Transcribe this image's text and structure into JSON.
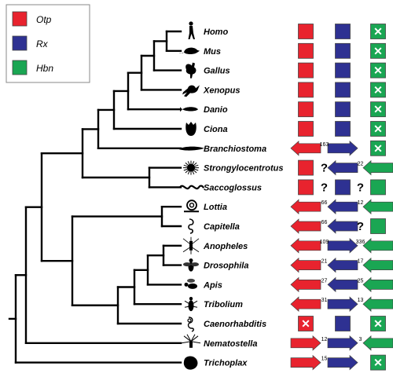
{
  "legend": [
    {
      "label": "Otp",
      "color": "#e8232e"
    },
    {
      "label": "Rx",
      "color": "#2e3192"
    },
    {
      "label": "Hbn",
      "color": "#1aa653"
    }
  ],
  "colors": {
    "otp": "#e8232e",
    "rx": "#2e3192",
    "hbn": "#1aa653"
  },
  "taxa": [
    {
      "name": "Homo",
      "silhouette": "human-icon",
      "otp": {
        "kind": "box"
      },
      "rx": {
        "kind": "box"
      },
      "hbn": {
        "kind": "absent"
      }
    },
    {
      "name": "Mus",
      "silhouette": "mouse-icon",
      "otp": {
        "kind": "box"
      },
      "rx": {
        "kind": "box"
      },
      "hbn": {
        "kind": "absent"
      }
    },
    {
      "name": "Gallus",
      "silhouette": "chicken-icon",
      "otp": {
        "kind": "box"
      },
      "rx": {
        "kind": "box"
      },
      "hbn": {
        "kind": "absent"
      }
    },
    {
      "name": "Xenopus",
      "silhouette": "frog-icon",
      "otp": {
        "kind": "box"
      },
      "rx": {
        "kind": "box"
      },
      "hbn": {
        "kind": "absent"
      }
    },
    {
      "name": "Danio",
      "silhouette": "fish-icon",
      "otp": {
        "kind": "box"
      },
      "rx": {
        "kind": "box"
      },
      "hbn": {
        "kind": "absent"
      }
    },
    {
      "name": "Ciona",
      "silhouette": "sea-squirt-icon",
      "otp": {
        "kind": "box"
      },
      "rx": {
        "kind": "box"
      },
      "hbn": {
        "kind": "absent"
      }
    },
    {
      "name": "Branchiostoma",
      "silhouette": "lancelet-icon",
      "otp": {
        "kind": "arrow",
        "dir": "left"
      },
      "gap1": "163",
      "rx": {
        "kind": "arrow",
        "dir": "right"
      },
      "hbn": {
        "kind": "absent"
      }
    },
    {
      "name": "Strongylocentrotus",
      "silhouette": "sea-urchin-icon",
      "otp": {
        "kind": "box"
      },
      "gap1": "?",
      "rx": {
        "kind": "arrow",
        "dir": "left"
      },
      "gap2": "22",
      "hbn": {
        "kind": "arrow",
        "dir": "left"
      }
    },
    {
      "name": "Saccoglossus",
      "silhouette": "acorn-worm-icon",
      "otp": {
        "kind": "box"
      },
      "gap1": "?",
      "rx": {
        "kind": "box"
      },
      "gap2": "?",
      "hbn": {
        "kind": "box"
      }
    },
    {
      "name": "Lottia",
      "silhouette": "snail-icon",
      "otp": {
        "kind": "arrow",
        "dir": "left"
      },
      "gap1": "66",
      "rx": {
        "kind": "arrow",
        "dir": "left"
      },
      "gap2": "12",
      "hbn": {
        "kind": "arrow",
        "dir": "left"
      }
    },
    {
      "name": "Capitella",
      "silhouette": "worm-icon",
      "otp": {
        "kind": "arrow",
        "dir": "left"
      },
      "gap1": "66",
      "rx": {
        "kind": "arrow",
        "dir": "left"
      },
      "gap2": "?",
      "hbn": {
        "kind": "box"
      }
    },
    {
      "name": "Anopheles",
      "silhouette": "mosquito-icon",
      "otp": {
        "kind": "arrow",
        "dir": "left"
      },
      "gap1": "109",
      "rx": {
        "kind": "arrow",
        "dir": "right"
      },
      "gap2": "336",
      "hbn": {
        "kind": "arrow",
        "dir": "left"
      }
    },
    {
      "name": "Drosophila",
      "silhouette": "fly-icon",
      "otp": {
        "kind": "arrow",
        "dir": "left"
      },
      "gap1": "21",
      "rx": {
        "kind": "arrow",
        "dir": "left"
      },
      "gap2": "17",
      "hbn": {
        "kind": "arrow",
        "dir": "left"
      }
    },
    {
      "name": "Apis",
      "silhouette": "bee-icon",
      "otp": {
        "kind": "arrow",
        "dir": "left"
      },
      "gap1": "27",
      "rx": {
        "kind": "arrow",
        "dir": "left"
      },
      "gap2": "25",
      "hbn": {
        "kind": "arrow",
        "dir": "left"
      }
    },
    {
      "name": "Tribolium",
      "silhouette": "beetle-icon",
      "otp": {
        "kind": "arrow",
        "dir": "left"
      },
      "gap1": "31",
      "rx": {
        "kind": "arrow",
        "dir": "right"
      },
      "gap2": "13",
      "hbn": {
        "kind": "arrow",
        "dir": "left"
      }
    },
    {
      "name": "Caenorhabditis",
      "silhouette": "nematode-icon",
      "otp": {
        "kind": "absent"
      },
      "rx": {
        "kind": "box"
      },
      "hbn": {
        "kind": "absent"
      }
    },
    {
      "name": "Nematostella",
      "silhouette": "sea-anemone-icon",
      "otp": {
        "kind": "arrow",
        "dir": "right"
      },
      "gap1": "12",
      "rx": {
        "kind": "arrow",
        "dir": "right"
      },
      "gap2": "3",
      "hbn": {
        "kind": "arrow",
        "dir": "left"
      }
    },
    {
      "name": "Trichoplax",
      "silhouette": "placozoan-icon",
      "otp": {
        "kind": "arrow",
        "dir": "right"
      },
      "gap1": "15",
      "rx": {
        "kind": "arrow",
        "dir": "right"
      },
      "hbn": {
        "kind": "absent"
      }
    }
  ]
}
